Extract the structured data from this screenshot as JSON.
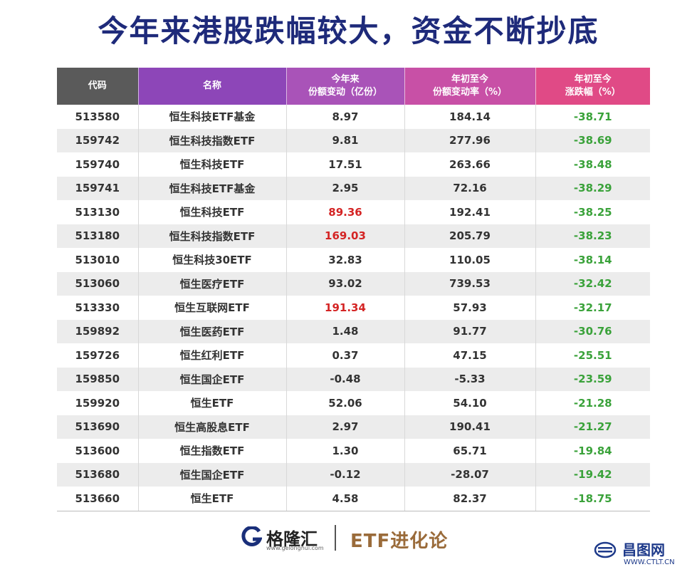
{
  "title": "今年来港股跌幅较大，资金不断抄底",
  "table": {
    "headers": [
      {
        "line1": "代码",
        "line2": ""
      },
      {
        "line1": "名称",
        "line2": ""
      },
      {
        "line1": "今年来",
        "line2": "份额变动（亿份）"
      },
      {
        "line1": "年初至今",
        "line2": "份额变动率（%）"
      },
      {
        "line1": "年初至今",
        "line2": "涨跌幅（%）"
      }
    ],
    "rows": [
      {
        "code": "513580",
        "name": "恒生科技ETF基金",
        "share_change": "8.97",
        "change_rate": "184.14",
        "return": "-38.71",
        "highlight": false
      },
      {
        "code": "159742",
        "name": "恒生科技指数ETF",
        "share_change": "9.81",
        "change_rate": "277.96",
        "return": "-38.69",
        "highlight": false
      },
      {
        "code": "159740",
        "name": "恒生科技ETF",
        "share_change": "17.51",
        "change_rate": "263.66",
        "return": "-38.48",
        "highlight": false
      },
      {
        "code": "159741",
        "name": "恒生科技ETF基金",
        "share_change": "2.95",
        "change_rate": "72.16",
        "return": "-38.29",
        "highlight": false
      },
      {
        "code": "513130",
        "name": "恒生科技ETF",
        "share_change": "89.36",
        "change_rate": "192.41",
        "return": "-38.25",
        "highlight": true
      },
      {
        "code": "513180",
        "name": "恒生科技指数ETF",
        "share_change": "169.03",
        "change_rate": "205.79",
        "return": "-38.23",
        "highlight": true
      },
      {
        "code": "513010",
        "name": "恒生科技30ETF",
        "share_change": "32.83",
        "change_rate": "110.05",
        "return": "-38.14",
        "highlight": false
      },
      {
        "code": "513060",
        "name": "恒生医疗ETF",
        "share_change": "93.02",
        "change_rate": "739.53",
        "return": "-32.42",
        "highlight": false
      },
      {
        "code": "513330",
        "name": "恒生互联网ETF",
        "share_change": "191.34",
        "change_rate": "57.93",
        "return": "-32.17",
        "highlight": true
      },
      {
        "code": "159892",
        "name": "恒生医药ETF",
        "share_change": "1.48",
        "change_rate": "91.77",
        "return": "-30.76",
        "highlight": false
      },
      {
        "code": "159726",
        "name": "恒生红利ETF",
        "share_change": "0.37",
        "change_rate": "47.15",
        "return": "-25.51",
        "highlight": false
      },
      {
        "code": "159850",
        "name": "恒生国企ETF",
        "share_change": "-0.48",
        "change_rate": "-5.33",
        "return": "-23.59",
        "highlight": false
      },
      {
        "code": "159920",
        "name": "恒生ETF",
        "share_change": "52.06",
        "change_rate": "54.10",
        "return": "-21.28",
        "highlight": false
      },
      {
        "code": "513690",
        "name": "恒生高股息ETF",
        "share_change": "2.97",
        "change_rate": "190.41",
        "return": "-21.27",
        "highlight": false
      },
      {
        "code": "513600",
        "name": "恒生指数ETF",
        "share_change": "1.30",
        "change_rate": "65.71",
        "return": "-19.84",
        "highlight": false
      },
      {
        "code": "513680",
        "name": "恒生国企ETF",
        "share_change": "-0.12",
        "change_rate": "-28.07",
        "return": "-19.42",
        "highlight": false
      },
      {
        "code": "513660",
        "name": "恒生ETF",
        "share_change": "4.58",
        "change_rate": "82.37",
        "return": "-18.75",
        "highlight": false
      }
    ]
  },
  "footer": {
    "logo_name": "格隆汇",
    "logo_url": "www.gelonghui.com",
    "brand": "ETF进化论"
  },
  "watermark": {
    "name": "昌图网",
    "url": "WWW.CTLT.CN"
  },
  "colors": {
    "title": "#1e2a7a",
    "negative_return": "#3aa23a",
    "highlight": "#d42424"
  }
}
